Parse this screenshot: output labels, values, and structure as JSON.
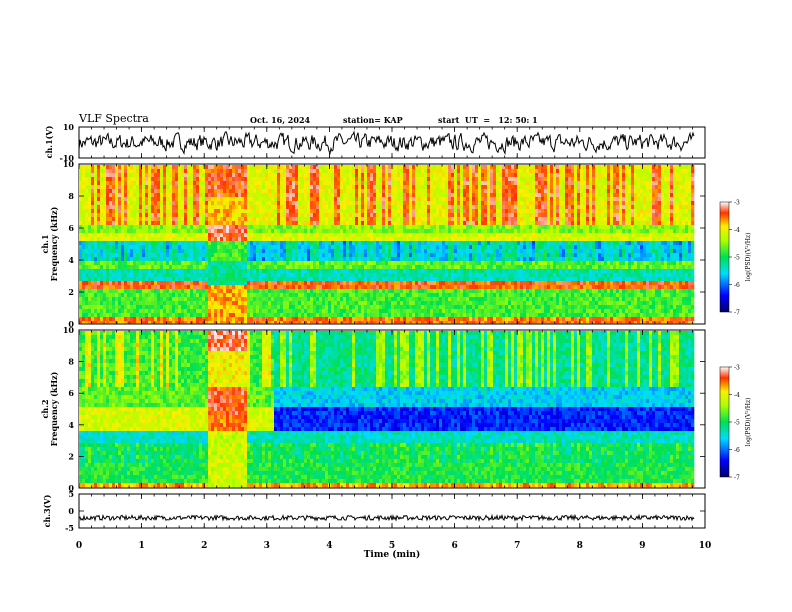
{
  "header": {
    "title": "VLF Spectra",
    "date": "Oct. 16, 2024",
    "station": "station= KAP",
    "start": "start  UT  =   12: 50: 1"
  },
  "chart_data": [
    {
      "type": "line",
      "panel": "ch1-waveform",
      "ylabel": "ch.1(V)",
      "ylim": [
        -10,
        10
      ],
      "yticks": [
        "10",
        "-10"
      ],
      "xlim": [
        0,
        10
      ],
      "data_extent": [
        0,
        9.83
      ],
      "signal": "noise waveform roughly between -6 and 6 V"
    },
    {
      "type": "heatmap",
      "panel": "ch1-spectrogram",
      "ylabel": [
        "ch.1",
        "Frequency (kHz)"
      ],
      "yticks": [
        "0",
        "2",
        "4",
        "6",
        "8",
        "10"
      ],
      "ylim": [
        0,
        10
      ],
      "xlim": [
        0,
        10
      ],
      "data_extent": [
        0,
        9.83
      ],
      "colorbar": {
        "label": "log(PSD)(V²/Hz)",
        "range": [
          -7,
          -3
        ],
        "ticks": [
          "-3",
          "-4",
          "-5",
          "-6",
          "-7"
        ]
      }
    },
    {
      "type": "heatmap",
      "panel": "ch2-spectrogram",
      "ylabel": [
        "ch.2",
        "Frequency (kHz)"
      ],
      "yticks": [
        "0",
        "2",
        "4",
        "6",
        "8",
        "10"
      ],
      "ylim": [
        0,
        10
      ],
      "xlim": [
        0,
        10
      ],
      "data_extent": [
        0,
        9.83
      ],
      "colorbar": {
        "label": "log(PSD)(V²/Hz)",
        "range": [
          -7,
          -3
        ],
        "ticks": [
          "-3",
          "-4",
          "-5",
          "-6",
          "-7"
        ]
      }
    },
    {
      "type": "line",
      "panel": "ch3-waveform",
      "ylabel": "ch.3(V)",
      "ylim": [
        -5,
        5
      ],
      "yticks": [
        "5",
        "0",
        "-5"
      ],
      "xlim": [
        0,
        10
      ],
      "data_extent": [
        0,
        9.83
      ],
      "signal": "near-constant around -2 V with small jitter"
    }
  ],
  "xaxis": {
    "label": "Time (min)",
    "ticks": [
      "0",
      "1",
      "2",
      "3",
      "4",
      "5",
      "6",
      "7",
      "8",
      "9",
      "10"
    ]
  }
}
